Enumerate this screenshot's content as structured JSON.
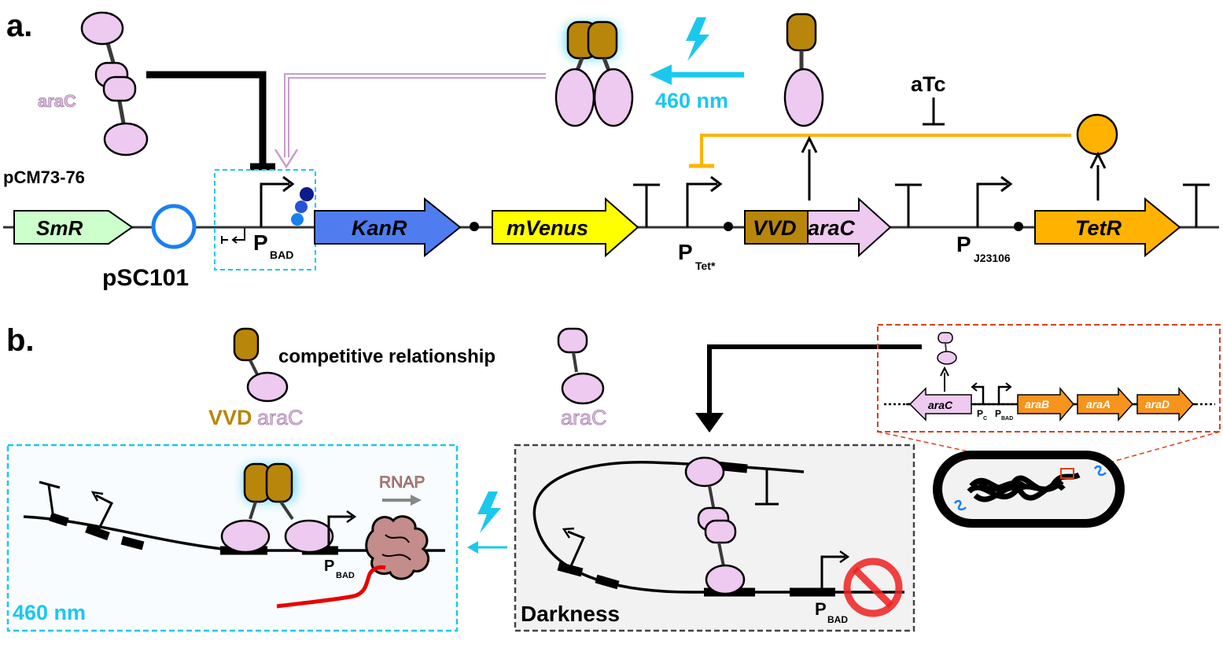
{
  "panel_a": {
    "label": "a.",
    "plasmid_name": "pCM73-76",
    "origin": "pSC101",
    "arac": "araC",
    "light": "460 nm",
    "atc": "aTc",
    "genes": {
      "smr": "SmR",
      "kanr": "KanR",
      "mvenus": "mVenus",
      "vvd_part": "VVD",
      "arac_part": "araC",
      "tetr": "TetR"
    },
    "promoters": {
      "pbad_main": "P",
      "pbad_sub": "BAD",
      "ptet_main": "P",
      "ptet_sub": "Tet*",
      "pj_main": "P",
      "pj_sub": "J23106"
    }
  },
  "panel_b": {
    "label": "b.",
    "competitive": "competitive relationship",
    "vvd_label_vvd": "VVD",
    "vvd_label_arac": "araC",
    "arac": "araC",
    "rnap": "RNAP",
    "light_box": "460 nm",
    "dark_box": "Darkness",
    "pbad_main": "P",
    "pbad_sub": "BAD",
    "inset": {
      "arac": "araC",
      "pc_main": "P",
      "pc_sub": "C",
      "pbad_main": "P",
      "pbad_sub": "BAD",
      "arab": "araB",
      "araa": "araA",
      "arad": "araD"
    }
  },
  "colors": {
    "lilac": "#EEC9F0",
    "gold": "#B8860B",
    "cyan": "#1AC8EE",
    "orange": "#FFB300",
    "kanr": "#4F7DF0",
    "venus": "#FFFF00",
    "smr": "#CCFFCC",
    "red": "#E80000",
    "rnap": "#C48C8A"
  }
}
